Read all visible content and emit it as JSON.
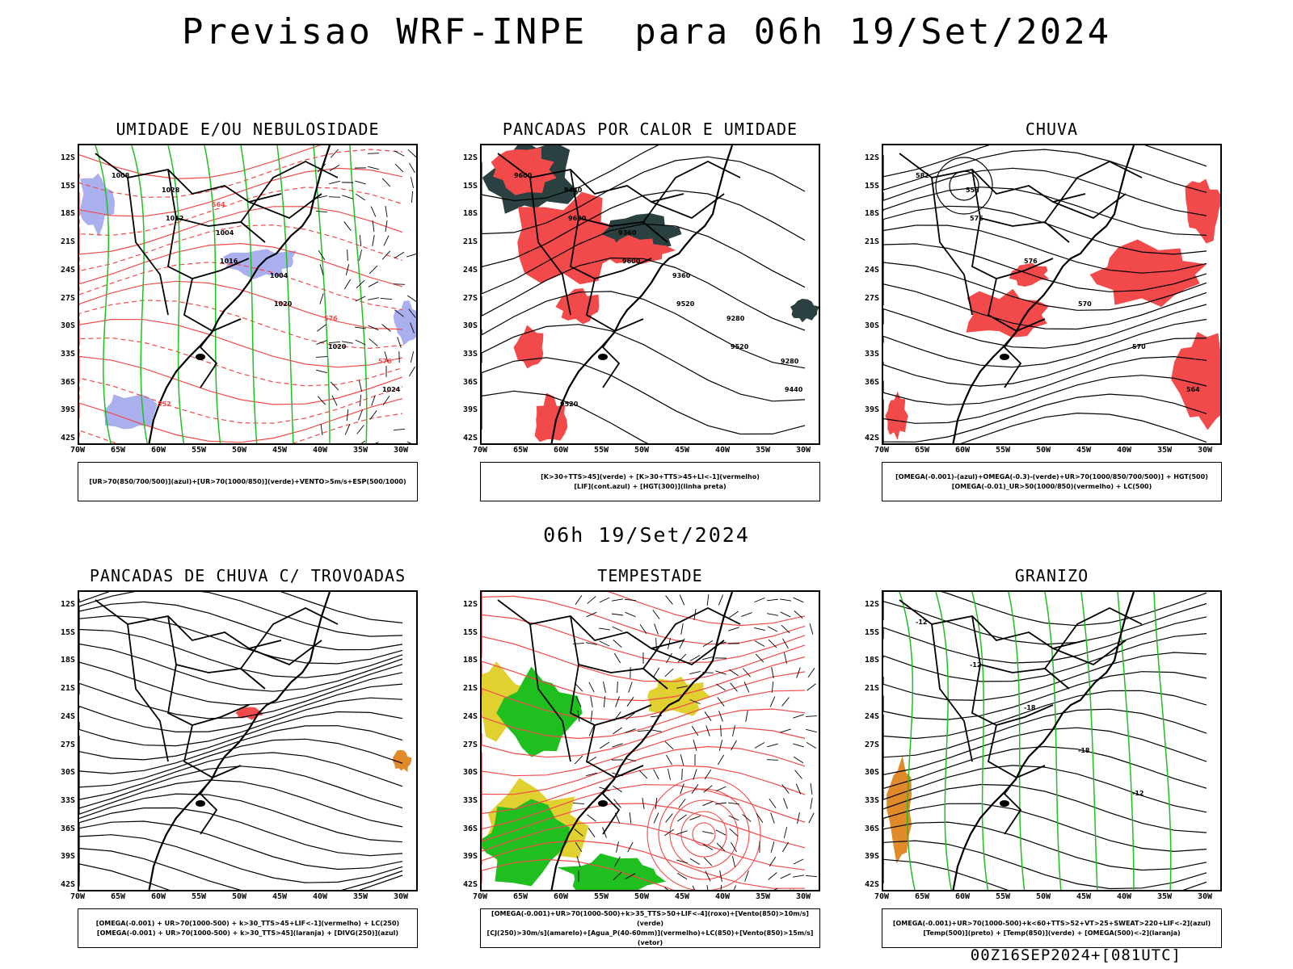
{
  "title": "Previsao WRF-INPE  para 06h 19/Set/2024",
  "subtitle": "06h 19/Set/2024",
  "footer": "00Z16SEP2024+[081UTC]",
  "lat_labels": [
    "12S",
    "15S",
    "18S",
    "21S",
    "24S",
    "27S",
    "30S",
    "33S",
    "36S",
    "39S",
    "42S"
  ],
  "lon_labels": [
    "70W",
    "65W",
    "60W",
    "55W",
    "50W",
    "45W",
    "40W",
    "35W",
    "30W"
  ],
  "colors": {
    "red": "#f24a4a",
    "green": "#1fbf1f",
    "blue": "#2233ee",
    "lavender": "#aab0ee",
    "dark": "#2b4040",
    "yellow": "#e0d030",
    "orange": "#e08a2a"
  },
  "panels": [
    {
      "title": "UMIDADE E/OU NEBULOSIDADE",
      "legend": [
        "[UR>70(850/700/500)](azul)+[UR>70(1000/850)](verde)+VENTO>5m/s+ESP(500/1000)"
      ],
      "contour_labels": [
        "1008",
        "1012",
        "1016",
        "1020",
        "1020",
        "1024",
        "1028",
        "1004",
        "1004",
        "576",
        "576",
        "552",
        "564"
      ]
    },
    {
      "title": "PANCADAS POR CALOR E UMIDADE",
      "legend": [
        "[K>30+TTS>45](verde) + [K>30+TTS>45+LI<-1](vermelho)",
        "[LIF](cont.azul) + [HGT(300)](linha preta)"
      ],
      "contour_labels": [
        "9600",
        "9600",
        "9600",
        "9520",
        "9520",
        "9440",
        "9440",
        "9360",
        "9360",
        "9280",
        "9280",
        "9520"
      ]
    },
    {
      "title": "CHUVA",
      "legend": [
        "[OMEGA(-0.001)-(azul)+OMEGA(-0.3)-(verde)+UR>70(1000/850/700/500)] + HGT(500)",
        "[OMEGA(-0.01)_UR>50(1000/850)(vermelho) + LC(500)"
      ],
      "contour_labels": [
        "582",
        "576",
        "576",
        "570",
        "570",
        "564",
        "558"
      ]
    },
    {
      "title": "PANCADAS DE CHUVA C/ TROVOADAS",
      "legend": [
        "[OMEGA(-0.001) + UR>70(1000-500) + k>30_TTS>45+LIF<-1](vermelho) + LC(250)",
        "[OMEGA(-0.001) + UR>70(1000-500) + k>30_TTS>45](laranja) + [DIVG(250)](azul)"
      ],
      "contour_labels": []
    },
    {
      "title": "TEMPESTADE",
      "legend": [
        "[OMEGA(-0.001)+UR>70(1000-500)+k>35_TTS>50+LIF<-4](roxo)+[Vento(850)>10m/s](verde)",
        "[CJ(250)>30m/s](amarelo)+[Agua_P(40-60mm)](vermelho)+LC(850)+[Vento(850)>15m/s](vetor)"
      ],
      "contour_labels": []
    },
    {
      "title": "GRANIZO",
      "legend": [
        "[OMEGA(-0.001)+UR>70(1000-500)+k<60+TTS>52+VT>25+SWEAT>220+LIF<-2](azul)",
        "[Temp(500)](preto) + [Temp(850)](verde) + [OMEGA(500)<-2](laranja)"
      ],
      "contour_labels": [
        "-12",
        "-12",
        "-18",
        "-18",
        "-12"
      ]
    }
  ]
}
